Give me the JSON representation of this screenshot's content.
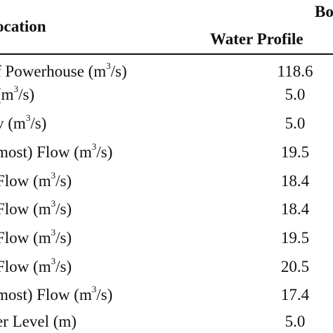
{
  "table": {
    "header_top": "Bo",
    "header_location": "ocation",
    "header_sub": "Water Profile",
    "rows": [
      {
        "pre": "f Powerhouse (m",
        "sup": "3",
        "post": "/s)",
        "value": "118.6"
      },
      {
        "pre": " (m",
        "sup": "3",
        "post": "/s)",
        "value": "5.0"
      },
      {
        "pre": "v (m",
        "sup": "3",
        "post": "/s)",
        "value": "5.0"
      },
      {
        "pre": " most) Flow (m",
        "sup": "3",
        "post": "/s)",
        "value": "19.5"
      },
      {
        "pre": " Flow (m",
        "sup": "3",
        "post": "/s)",
        "value": "18.4"
      },
      {
        "pre": " Flow (m",
        "sup": "3",
        "post": "/s)",
        "value": "18.4"
      },
      {
        "pre": " Flow (m",
        "sup": "3",
        "post": "/s)",
        "value": "19.5"
      },
      {
        "pre": " Flow (m",
        "sup": "3",
        "post": "/s)",
        "value": "20.5"
      },
      {
        "pre": " most) Flow (m",
        "sup": "3",
        "post": "/s)",
        "value": "17.4"
      },
      {
        "pre": "er Level (m)",
        "sup": "",
        "post": "",
        "value": "5.0"
      }
    ]
  }
}
